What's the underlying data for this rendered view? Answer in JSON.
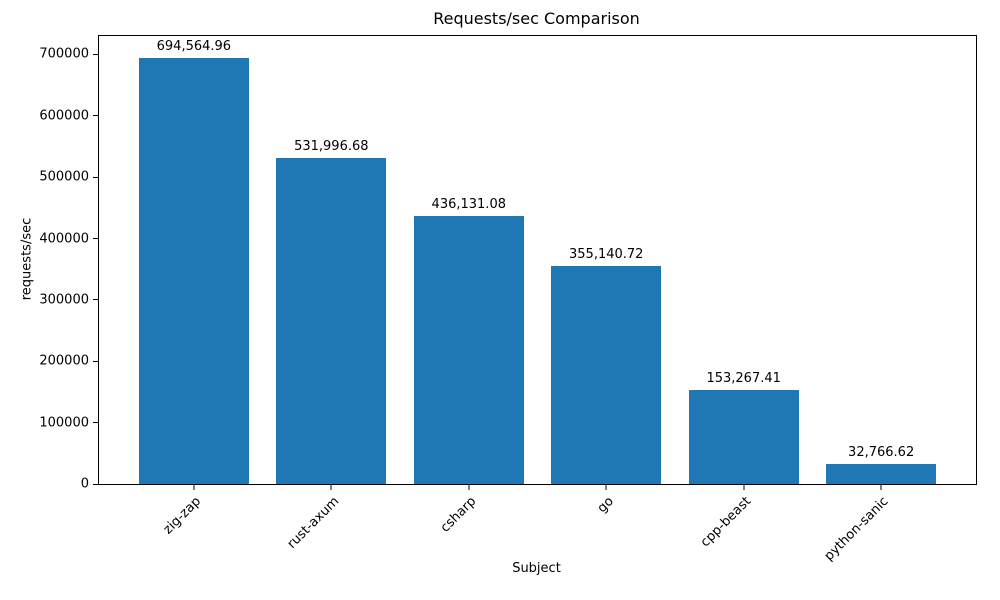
{
  "chart_data": {
    "type": "bar",
    "title": "Requests/sec Comparison",
    "xlabel": "Subject",
    "ylabel": "requests/sec",
    "categories": [
      "zig-zap",
      "rust-axum",
      "csharp",
      "go",
      "cpp-beast",
      "python-sanic"
    ],
    "values": [
      694564.96,
      531996.68,
      436131.08,
      355140.72,
      153267.41,
      32766.62
    ],
    "value_labels": [
      "694,564.96",
      "531,996.68",
      "436,131.08",
      "355,140.72",
      "153,267.41",
      "32,766.62"
    ],
    "yticks": [
      0,
      100000,
      200000,
      300000,
      400000,
      500000,
      600000,
      700000
    ],
    "ytick_labels": [
      "0",
      "100000",
      "200000",
      "300000",
      "400000",
      "500000",
      "600000",
      "700000"
    ],
    "ylim": [
      0,
      730000
    ],
    "bar_color": "#1f77b4",
    "grid": false,
    "legend": "none",
    "x_tick_rotation_deg": 45
  }
}
